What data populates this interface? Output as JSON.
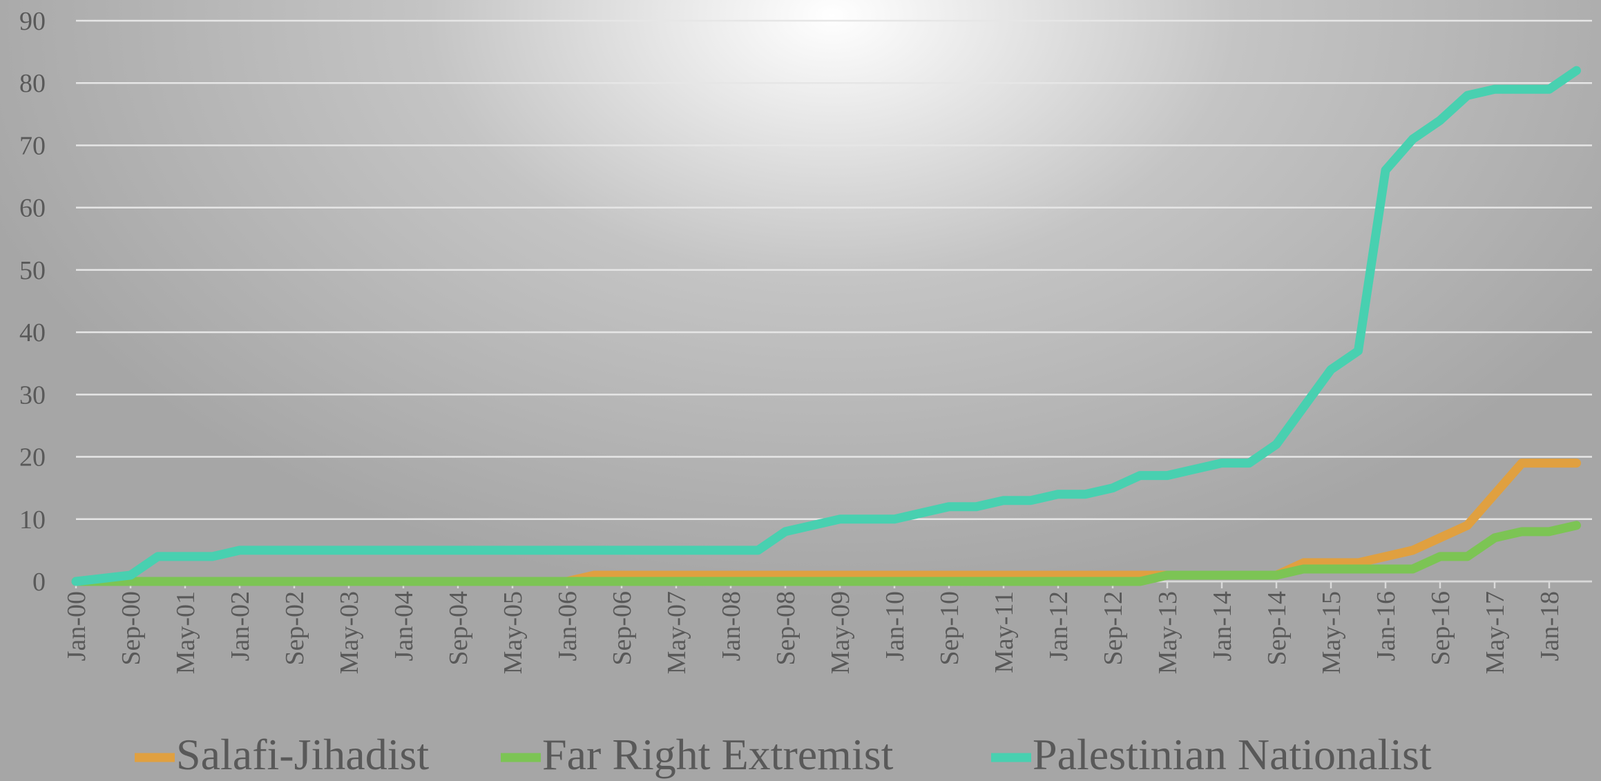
{
  "chart_data": {
    "type": "line",
    "categories": [
      "Jan-00",
      null,
      "Sep-00",
      null,
      "May-01",
      null,
      "Jan-02",
      null,
      "Sep-02",
      null,
      "May-03",
      null,
      "Jan-04",
      null,
      "Sep-04",
      null,
      "May-05",
      null,
      "Jan-06",
      null,
      "Sep-06",
      null,
      "May-07",
      null,
      "Jan-08",
      null,
      "Sep-08",
      null,
      "May-09",
      null,
      "Jan-10",
      null,
      "Sep-10",
      null,
      "May-11",
      null,
      "Jan-12",
      null,
      "Sep-12",
      null,
      "May-13",
      null,
      "Jan-14",
      null,
      "Sep-14",
      null,
      "May-15",
      null,
      "Jan-16",
      null,
      "Sep-16",
      null,
      "May-17",
      null,
      "Jan-18",
      null
    ],
    "series": [
      {
        "name": "Salafi-Jihadist",
        "color": "#e0a040",
        "values": [
          0,
          0,
          0,
          0,
          0,
          0,
          0,
          0,
          0,
          0,
          0,
          0,
          0,
          0,
          0,
          0,
          0,
          0,
          0,
          1,
          1,
          1,
          1,
          1,
          1,
          1,
          1,
          1,
          1,
          1,
          1,
          1,
          1,
          1,
          1,
          1,
          1,
          1,
          1,
          1,
          1,
          1,
          1,
          1,
          1,
          3,
          3,
          3,
          4,
          5,
          7,
          9,
          14,
          19,
          19,
          19
        ]
      },
      {
        "name": "Far Right Extremist",
        "color": "#7cc454",
        "values": [
          0,
          0,
          0,
          0,
          0,
          0,
          0,
          0,
          0,
          0,
          0,
          0,
          0,
          0,
          0,
          0,
          0,
          0,
          0,
          0,
          0,
          0,
          0,
          0,
          0,
          0,
          0,
          0,
          0,
          0,
          0,
          0,
          0,
          0,
          0,
          0,
          0,
          0,
          0,
          0,
          1,
          1,
          1,
          1,
          1,
          2,
          2,
          2,
          2,
          2,
          4,
          4,
          7,
          8,
          8,
          9
        ]
      },
      {
        "name": "Palestinian Nationalist",
        "color": "#48d0b0",
        "values": [
          0,
          0.5,
          1,
          4,
          4,
          4,
          5,
          5,
          5,
          5,
          5,
          5,
          5,
          5,
          5,
          5,
          5,
          5,
          5,
          5,
          5,
          5,
          5,
          5,
          5,
          5,
          8,
          9,
          10,
          10,
          10,
          11,
          12,
          12,
          13,
          13,
          14,
          14,
          15,
          17,
          17,
          18,
          19,
          19,
          22,
          28,
          34,
          37,
          66,
          71,
          74,
          78,
          79,
          79,
          79,
          82
        ]
      }
    ],
    "ylim": [
      0,
      90
    ],
    "yticks": [
      0,
      10,
      20,
      30,
      40,
      50,
      60,
      70,
      80,
      90
    ],
    "grid": true
  }
}
